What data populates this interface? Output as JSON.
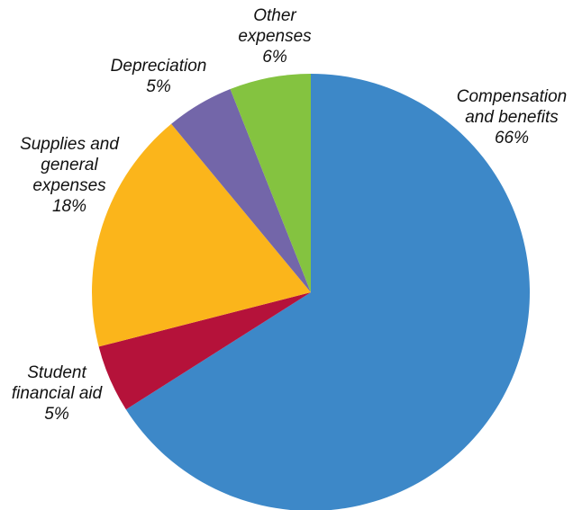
{
  "chart_data": {
    "type": "pie",
    "start_angle": 0,
    "direction": "clockwise",
    "slices": [
      {
        "name": "Compensation and benefits",
        "value": 66,
        "color": "#3d88c8",
        "label_lines": [
          "Compensation",
          "and benefits",
          "66%"
        ]
      },
      {
        "name": "Student financial aid",
        "value": 5,
        "color": "#b5123a",
        "label_lines": [
          "Student",
          "financial aid",
          "5%"
        ]
      },
      {
        "name": "Supplies and general expenses",
        "value": 18,
        "color": "#fbb51b",
        "label_lines": [
          "Supplies and",
          "general",
          "expenses",
          "18%"
        ]
      },
      {
        "name": "Depreciation",
        "value": 5,
        "color": "#7366a9",
        "label_lines": [
          "Depreciation",
          "5%"
        ]
      },
      {
        "name": "Other expenses",
        "value": 6,
        "color": "#84c340",
        "label_lines": [
          "Other",
          "expenses",
          "6%"
        ]
      }
    ]
  }
}
